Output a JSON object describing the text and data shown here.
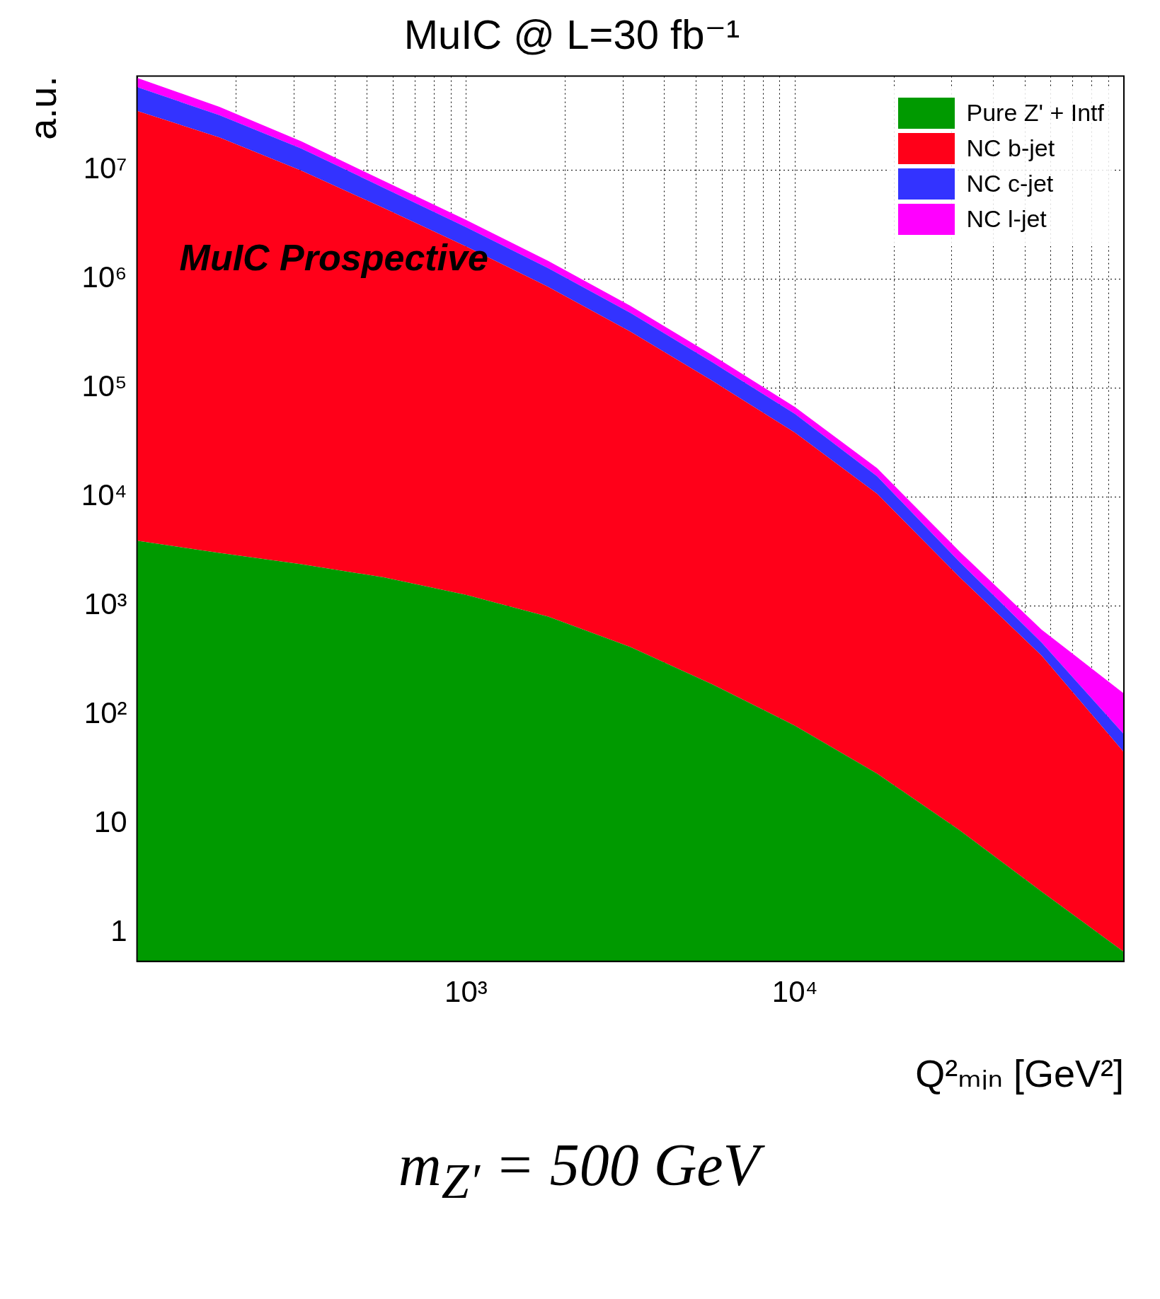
{
  "chart_data": {
    "type": "area",
    "title": "MuIC @ L=30 fb⁻¹",
    "xlabel": "Q²ₘᵢₙ [GeV²]",
    "ylabel": "a.u.",
    "annotations": [
      "MuIC Prospective",
      "m$_{Z′}$ = 500 GeV"
    ],
    "x": [
      100,
      178,
      316,
      562,
      1000,
      1778,
      3162,
      5623,
      10000,
      17783,
      31623,
      56234,
      100000
    ],
    "stacked": true,
    "log": "xy",
    "grid": true,
    "legend": "top right",
    "xlim": [
      100,
      100000
    ],
    "ylim": [
      0.55,
      73000000
    ],
    "xticks": [
      {
        "value": 200,
        "label": null
      },
      {
        "value": 300,
        "label": null
      },
      {
        "value": 400,
        "label": null
      },
      {
        "value": 500,
        "label": null
      },
      {
        "value": 600,
        "label": null
      },
      {
        "value": 700,
        "label": null
      },
      {
        "value": 800,
        "label": null
      },
      {
        "value": 900,
        "label": null
      },
      {
        "value": 1000,
        "label": "10³"
      },
      {
        "value": 2000,
        "label": null
      },
      {
        "value": 3000,
        "label": null
      },
      {
        "value": 4000,
        "label": null
      },
      {
        "value": 5000,
        "label": null
      },
      {
        "value": 6000,
        "label": null
      },
      {
        "value": 7000,
        "label": null
      },
      {
        "value": 8000,
        "label": null
      },
      {
        "value": 9000,
        "label": null
      },
      {
        "value": 10000,
        "label": "10⁴"
      },
      {
        "value": 20000,
        "label": null
      },
      {
        "value": 30000,
        "label": null
      },
      {
        "value": 40000,
        "label": null
      },
      {
        "value": 50000,
        "label": null
      },
      {
        "value": 60000,
        "label": null
      },
      {
        "value": 70000,
        "label": null
      },
      {
        "value": 80000,
        "label": null
      },
      {
        "value": 90000,
        "label": null
      }
    ],
    "yticks": [
      1,
      10,
      {
        "value": 100,
        "label": "10²"
      },
      {
        "value": 1000,
        "label": "10³"
      },
      {
        "value": 10000,
        "label": "10⁴"
      },
      {
        "value": 100000,
        "label": "10⁵"
      },
      {
        "value": 1000000,
        "label": "10⁶"
      },
      {
        "value": 10000000,
        "label": "10⁷"
      }
    ],
    "series": [
      {
        "name": "Pure Z' + Intf",
        "color": "#009a00",
        "values": [
          3981,
          3076,
          2421,
          1837,
          1270,
          802,
          421,
          191,
          80,
          29,
          8.8,
          2.4,
          0.67
        ]
      },
      {
        "name": "NC b-jet",
        "color": "#ff0019",
        "values": [
          35000000,
          20000000,
          9900000,
          4500000,
          2000000,
          850000,
          330000,
          116000,
          39000,
          10700,
          1840,
          348,
          45
        ]
      },
      {
        "name": "NC c-jet",
        "color": "#3333ff",
        "values": [
          23000000,
          12000000,
          5900000,
          2400000,
          1000000,
          410000,
          160000,
          56000,
          19000,
          4800,
          700,
          112,
          21
        ]
      },
      {
        "name": "NC l-jet",
        "color": "#ff00ff",
        "values": [
          12500000,
          6100000,
          2600000,
          1100000,
          500000,
          210000,
          80000,
          28000,
          9000,
          2900,
          640,
          146,
          91
        ]
      }
    ]
  }
}
